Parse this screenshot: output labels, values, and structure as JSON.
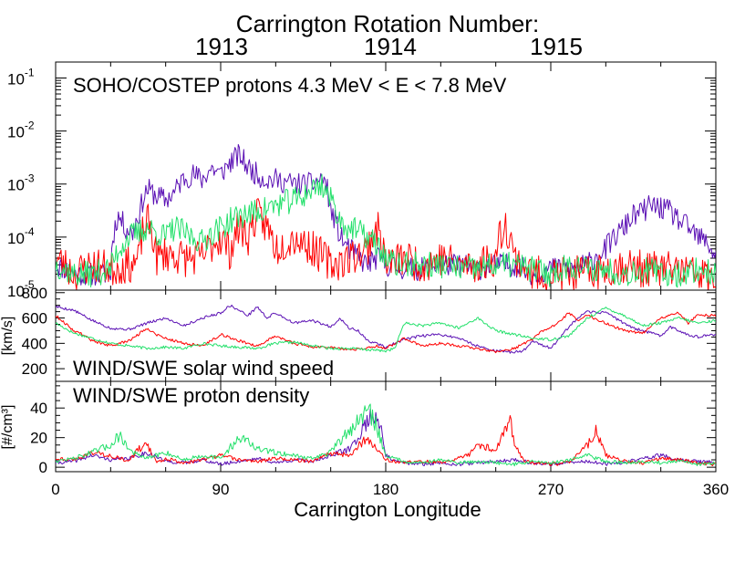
{
  "header": {
    "title": "Carrington Rotation Number:",
    "rotations": [
      {
        "label": "1913",
        "color": "#5a0fb4"
      },
      {
        "label": "1914",
        "color": "#ff0000"
      },
      {
        "label": "1915",
        "color": "#22e06a"
      }
    ]
  },
  "chart_data": [
    {
      "type": "line",
      "title": "SOHO/COSTEP protons 4.3 MeV < E < 7.8 MeV",
      "xlim": [
        0,
        360
      ],
      "ylim": [
        1e-05,
        0.2
      ],
      "yscale": "log",
      "ytick_labels": [
        {
          "value": 1e-05,
          "base": "10",
          "exp": "-5"
        },
        {
          "value": 0.0001,
          "base": "10",
          "exp": "-4"
        },
        {
          "value": 0.001,
          "base": "10",
          "exp": "-3"
        },
        {
          "value": 0.01,
          "base": "10",
          "exp": "-2"
        },
        {
          "value": 0.1,
          "base": "10",
          "exp": "-1"
        }
      ],
      "series": [
        {
          "name": "1913",
          "color": "#5a0fb4",
          "noise": 0.22,
          "seed": 11,
          "x": [
            0,
            10,
            20,
            30,
            34,
            38,
            42,
            46,
            50,
            55,
            60,
            65,
            70,
            75,
            80,
            85,
            90,
            95,
            100,
            105,
            110,
            115,
            120,
            130,
            140,
            146,
            150,
            155,
            160,
            165,
            170,
            175,
            180,
            190,
            200,
            210,
            220,
            230,
            240,
            250,
            260,
            270,
            280,
            290,
            300,
            305,
            310,
            315,
            320,
            325,
            330,
            335,
            340,
            345,
            350,
            355,
            360
          ],
          "y": [
            3e-05,
            2e-05,
            2e-05,
            2e-05,
            0.00025,
            0.00015,
            0.00012,
            0.0003,
            0.0008,
            0.0006,
            0.0005,
            0.0007,
            0.0013,
            0.0015,
            0.0012,
            0.002,
            0.0015,
            0.0025,
            0.0035,
            0.002,
            0.0015,
            0.0012,
            0.0012,
            0.001,
            0.001,
            0.0013,
            0.0003,
            0.0001,
            6e-05,
            4e-05,
            3e-05,
            4e-05,
            3e-05,
            2.5e-05,
            2.5e-05,
            3e-05,
            3e-05,
            2.5e-05,
            3e-05,
            3e-05,
            2e-05,
            2.5e-05,
            2.5e-05,
            3e-05,
            6e-05,
            0.0001,
            0.00015,
            0.00025,
            0.0003,
            0.0004,
            0.00035,
            0.0003,
            0.0002,
            0.00015,
            0.0001,
            8e-05,
            4e-05
          ]
        },
        {
          "name": "1914",
          "color": "#ff0000",
          "noise": 0.35,
          "seed": 23,
          "x": [
            0,
            10,
            20,
            30,
            40,
            45,
            50,
            55,
            60,
            70,
            80,
            90,
            95,
            100,
            105,
            110,
            120,
            130,
            140,
            150,
            160,
            170,
            175,
            180,
            190,
            200,
            210,
            220,
            230,
            240,
            245,
            250,
            255,
            260,
            270,
            280,
            290,
            300,
            310,
            320,
            330,
            340,
            350,
            355,
            360
          ],
          "y": [
            4e-05,
            2e-05,
            3e-05,
            2.5e-05,
            3e-05,
            3.5e-05,
            0.0002,
            4e-05,
            5e-05,
            4e-05,
            4e-05,
            0.0001,
            5e-05,
            0.00015,
            0.0001,
            0.00025,
            6e-05,
            0.0001,
            6e-05,
            3e-05,
            4e-05,
            6e-05,
            0.00015,
            3e-05,
            4e-05,
            3e-05,
            4e-05,
            3e-05,
            3e-05,
            4e-05,
            0.00018,
            4e-05,
            3e-05,
            2e-05,
            2e-05,
            2e-05,
            2e-05,
            2.5e-05,
            3e-05,
            2.5e-05,
            2.5e-05,
            2.5e-05,
            2e-05,
            1.8e-05,
            1.5e-05
          ]
        },
        {
          "name": "1915",
          "color": "#22e06a",
          "noise": 0.25,
          "seed": 37,
          "x": [
            0,
            10,
            20,
            30,
            40,
            45,
            50,
            55,
            60,
            65,
            70,
            75,
            80,
            85,
            90,
            95,
            100,
            110,
            120,
            130,
            135,
            140,
            145,
            150,
            155,
            160,
            170,
            180,
            185,
            190,
            200,
            210,
            220,
            230,
            240,
            250,
            260,
            270,
            280,
            290,
            300,
            310,
            320,
            330,
            340,
            350,
            360
          ],
          "y": [
            3e-05,
            2e-05,
            2e-05,
            2.5e-05,
            0.0001,
            0.00012,
            0.00015,
            0.00012,
            0.0001,
            0.00015,
            0.00012,
            0.0001,
            8e-05,
            0.00012,
            0.00015,
            0.0002,
            0.00025,
            0.0003,
            0.0004,
            0.0005,
            0.0006,
            0.0008,
            0.001,
            0.0005,
            0.0002,
            0.00015,
            0.0001,
            4e-05,
            3e-05,
            3e-05,
            3e-05,
            3e-05,
            2.5e-05,
            2.5e-05,
            3e-05,
            3e-05,
            2.5e-05,
            2e-05,
            3e-05,
            2.5e-05,
            2.5e-05,
            2e-05,
            2.5e-05,
            2e-05,
            2e-05,
            2.5e-05,
            2e-05
          ]
        }
      ]
    },
    {
      "type": "line",
      "title": "WIND/SWE solar wind speed",
      "ylabel": "[km/s]",
      "xlim": [
        0,
        360
      ],
      "ylim": [
        100,
        820
      ],
      "yticks": [
        200,
        400,
        600,
        800
      ],
      "series": [
        {
          "name": "1913",
          "color": "#5a0fb4",
          "noise": 0.015,
          "seed": 5,
          "x": [
            0,
            10,
            20,
            30,
            40,
            50,
            60,
            70,
            80,
            90,
            95,
            100,
            105,
            110,
            115,
            120,
            130,
            140,
            150,
            155,
            160,
            165,
            170,
            175,
            180,
            185,
            190,
            200,
            210,
            220,
            230,
            240,
            250,
            255,
            260,
            270,
            280,
            285,
            290,
            295,
            300,
            305,
            310,
            315,
            320,
            330,
            335,
            340,
            345,
            350,
            355,
            360
          ],
          "y": [
            690,
            660,
            580,
            520,
            510,
            560,
            600,
            540,
            600,
            640,
            700,
            660,
            620,
            690,
            600,
            640,
            560,
            580,
            530,
            600,
            520,
            500,
            420,
            400,
            370,
            400,
            430,
            460,
            470,
            440,
            380,
            340,
            330,
            340,
            420,
            360,
            530,
            600,
            650,
            640,
            650,
            600,
            560,
            520,
            500,
            460,
            530,
            500,
            470,
            450,
            460,
            470
          ]
        },
        {
          "name": "1914",
          "color": "#ff0000",
          "noise": 0.015,
          "seed": 9,
          "x": [
            0,
            10,
            15,
            20,
            30,
            40,
            50,
            55,
            60,
            70,
            80,
            90,
            100,
            110,
            120,
            130,
            140,
            150,
            160,
            170,
            175,
            180,
            185,
            190,
            200,
            210,
            220,
            230,
            240,
            250,
            260,
            265,
            270,
            280,
            285,
            290,
            300,
            310,
            320,
            330,
            340,
            345,
            350,
            360
          ],
          "y": [
            620,
            500,
            470,
            420,
            380,
            420,
            520,
            470,
            440,
            400,
            380,
            470,
            420,
            380,
            460,
            400,
            370,
            370,
            350,
            360,
            380,
            360,
            400,
            440,
            380,
            400,
            380,
            360,
            330,
            360,
            430,
            500,
            520,
            640,
            580,
            620,
            560,
            500,
            480,
            600,
            640,
            560,
            620,
            620
          ]
        },
        {
          "name": "1915",
          "color": "#22e06a",
          "noise": 0.015,
          "seed": 17,
          "x": [
            0,
            10,
            20,
            30,
            40,
            50,
            60,
            70,
            80,
            90,
            100,
            110,
            120,
            130,
            140,
            150,
            160,
            170,
            180,
            185,
            190,
            200,
            210,
            220,
            230,
            240,
            250,
            260,
            270,
            280,
            285,
            290,
            300,
            310,
            320,
            330,
            340,
            350,
            360
          ],
          "y": [
            560,
            480,
            440,
            400,
            380,
            360,
            370,
            360,
            400,
            380,
            370,
            360,
            400,
            410,
            380,
            360,
            360,
            350,
            340,
            360,
            560,
            540,
            560,
            520,
            600,
            500,
            470,
            440,
            430,
            460,
            530,
            600,
            680,
            620,
            540,
            560,
            600,
            560,
            580
          ]
        }
      ]
    },
    {
      "type": "line",
      "title": "WIND/SWE proton density",
      "ylabel": "[#/cm³]",
      "xlabel": "Carrington Longitude",
      "xlim": [
        0,
        360
      ],
      "ylim": [
        -3,
        58
      ],
      "xticks": [
        0,
        90,
        180,
        270,
        360
      ],
      "yticks": [
        0,
        20,
        40
      ],
      "series": [
        {
          "name": "1913",
          "color": "#5a0fb4",
          "noise": 0.2,
          "seed": 41,
          "x": [
            0,
            10,
            20,
            30,
            40,
            50,
            60,
            70,
            80,
            90,
            100,
            110,
            120,
            130,
            140,
            150,
            160,
            165,
            170,
            175,
            178,
            180,
            185,
            190,
            200,
            210,
            220,
            230,
            240,
            250,
            260,
            270,
            280,
            290,
            300,
            310,
            320,
            330,
            340,
            350,
            360
          ],
          "y": [
            3,
            4,
            8,
            5,
            6,
            10,
            4,
            3,
            5,
            2,
            4,
            6,
            3,
            5,
            4,
            8,
            12,
            20,
            32,
            35,
            25,
            8,
            4,
            3,
            2,
            3,
            2,
            3,
            4,
            5,
            3,
            2,
            3,
            4,
            2,
            3,
            6,
            8,
            5,
            4,
            3
          ]
        },
        {
          "name": "1914",
          "color": "#ff0000",
          "noise": 0.2,
          "seed": 43,
          "x": [
            0,
            10,
            20,
            30,
            40,
            45,
            50,
            55,
            60,
            70,
            80,
            90,
            100,
            110,
            120,
            130,
            140,
            150,
            160,
            170,
            180,
            190,
            200,
            210,
            220,
            225,
            230,
            240,
            245,
            248,
            250,
            255,
            260,
            270,
            280,
            290,
            295,
            300,
            310,
            320,
            330,
            340,
            350,
            360
          ],
          "y": [
            6,
            5,
            10,
            8,
            4,
            12,
            15,
            3,
            6,
            3,
            5,
            8,
            5,
            4,
            6,
            5,
            4,
            10,
            8,
            20,
            5,
            3,
            4,
            3,
            6,
            8,
            15,
            12,
            25,
            35,
            15,
            5,
            3,
            2,
            3,
            15,
            25,
            8,
            4,
            3,
            6,
            5,
            3,
            2
          ]
        },
        {
          "name": "1915",
          "color": "#22e06a",
          "noise": 0.2,
          "seed": 47,
          "x": [
            0,
            10,
            20,
            30,
            35,
            40,
            45,
            50,
            60,
            70,
            80,
            90,
            100,
            105,
            110,
            120,
            130,
            140,
            150,
            160,
            165,
            170,
            175,
            180,
            190,
            200,
            210,
            220,
            230,
            240,
            250,
            260,
            270,
            280,
            290,
            300,
            310,
            320,
            330,
            340,
            350,
            360
          ],
          "y": [
            4,
            6,
            10,
            15,
            22,
            12,
            8,
            6,
            10,
            5,
            8,
            6,
            20,
            18,
            12,
            10,
            8,
            6,
            10,
            25,
            30,
            40,
            28,
            8,
            4,
            3,
            5,
            3,
            4,
            3,
            2,
            4,
            3,
            5,
            8,
            4,
            3,
            4,
            3,
            4,
            2,
            3
          ]
        }
      ]
    }
  ],
  "xaxis": {
    "label": "Carrington Longitude",
    "ticks": [
      0,
      90,
      180,
      270,
      360
    ]
  }
}
